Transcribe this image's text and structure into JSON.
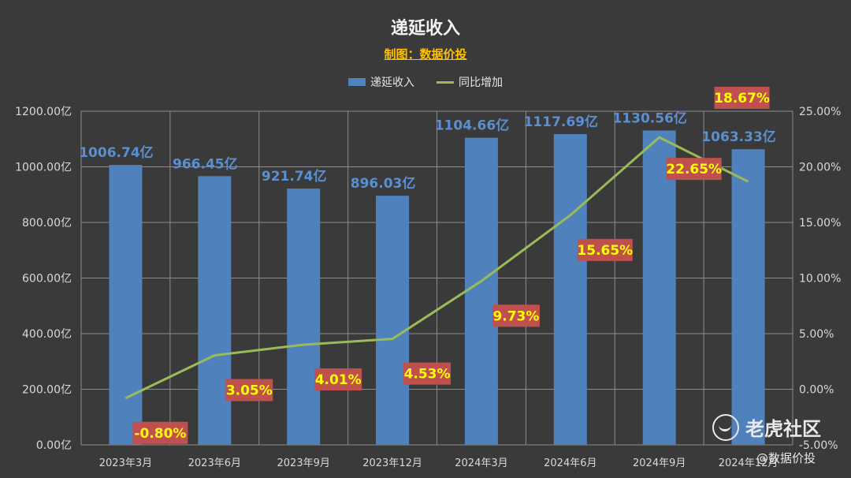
{
  "chart_data": {
    "type": "bar",
    "title": "递延收入",
    "subtitle": "制图：数据价投",
    "categories": [
      "2023年3月",
      "2023年6月",
      "2023年9月",
      "2023年12月",
      "2024年3月",
      "2024年6月",
      "2024年9月",
      "2024年12月"
    ],
    "series": [
      {
        "name": "递延收入",
        "type": "bar",
        "axis": "left",
        "values": [
          1006.74,
          966.45,
          921.74,
          896.03,
          1104.66,
          1117.69,
          1130.56,
          1063.33
        ],
        "labels": [
          "1006.74亿",
          "966.45亿",
          "921.74亿",
          "896.03亿",
          "1104.66亿",
          "1117.69亿",
          "1130.56亿",
          "1063.33亿"
        ],
        "color": "#4f81bd"
      },
      {
        "name": "同比增加",
        "type": "line",
        "axis": "right",
        "values": [
          -0.8,
          3.05,
          4.01,
          4.53,
          9.73,
          15.65,
          22.65,
          18.67
        ],
        "labels": [
          "-0.80%",
          "3.05%",
          "4.01%",
          "4.53%",
          "9.73%",
          "15.65%",
          "22.65%",
          "18.67%"
        ],
        "color": "#9bbb59"
      }
    ],
    "y_left": {
      "min": 0,
      "max": 1200,
      "ticks": [
        "0.00亿",
        "200.00亿",
        "400.00亿",
        "600.00亿",
        "800.00亿",
        "1000.00亿",
        "1200.00亿"
      ]
    },
    "y_right": {
      "min": -5,
      "max": 25,
      "ticks": [
        "-5.00%",
        "0.00%",
        "5.00%",
        "10.00%",
        "15.00%",
        "20.00%",
        "25.00%"
      ]
    },
    "grid": true,
    "legend_position": "top",
    "bar_label_color": "#5b8fd0",
    "line_label_bg": "#c0504d",
    "line_label_color": "#ffff00"
  },
  "watermark": {
    "brand": "老虎社区",
    "handle": "@数据价投"
  }
}
